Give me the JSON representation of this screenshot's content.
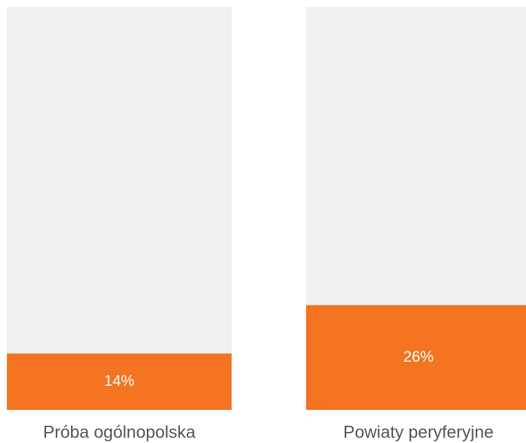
{
  "chart_data": {
    "type": "bar",
    "categories": [
      "Próba ogólnopolska",
      "Powiaty peryferyjne"
    ],
    "values": [
      14,
      26
    ],
    "value_labels": [
      "14%",
      "26%"
    ],
    "color": "#f47421",
    "track_color": "#eff0f0",
    "ylim": [
      0,
      100
    ]
  }
}
